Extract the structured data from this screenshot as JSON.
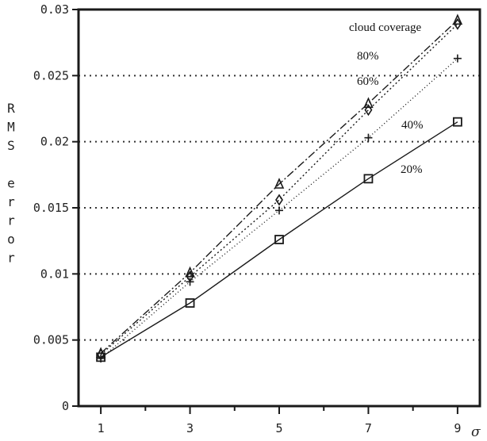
{
  "chart_data": {
    "type": "line",
    "title": "",
    "xlabel": "σ",
    "ylabel": "RMS error",
    "xlim": [
      0.5,
      9.5
    ],
    "ylim": [
      0,
      0.03
    ],
    "x_ticks": [
      1,
      3,
      5,
      7,
      9
    ],
    "x_tick_labels": [
      "1",
      "3",
      "5",
      "7",
      "9"
    ],
    "y_ticks": [
      0,
      0.005,
      0.01,
      0.015,
      0.02,
      0.025,
      0.03
    ],
    "y_tick_labels": [
      "0",
      "0.005",
      "0.01",
      "0.015",
      "0.02",
      "0.025",
      "0.03"
    ],
    "grid": "horizontal dotted",
    "legend_title": "cloud coverage",
    "x": [
      1,
      3,
      5,
      7,
      9
    ],
    "series": [
      {
        "name": "80%",
        "marker": "triangle",
        "dash": "10 3 2 3",
        "values": [
          0.004,
          0.0101,
          0.0168,
          0.0229,
          0.0292
        ]
      },
      {
        "name": "60%",
        "marker": "diamond",
        "dash": "2 3",
        "values": [
          0.0039,
          0.0098,
          0.0156,
          0.0224,
          0.0289
        ]
      },
      {
        "name": "40%",
        "marker": "plus",
        "dash": "1 3",
        "values": [
          0.0036,
          0.0094,
          0.0148,
          0.0203,
          0.0263
        ]
      },
      {
        "name": "20%",
        "marker": "square",
        "dash": "",
        "values": [
          0.0037,
          0.0078,
          0.0126,
          0.0172,
          0.0215
        ]
      }
    ]
  },
  "colors": {
    "ink": "#1a1a1a",
    "grid": "#333333",
    "background": "#ffffff"
  }
}
